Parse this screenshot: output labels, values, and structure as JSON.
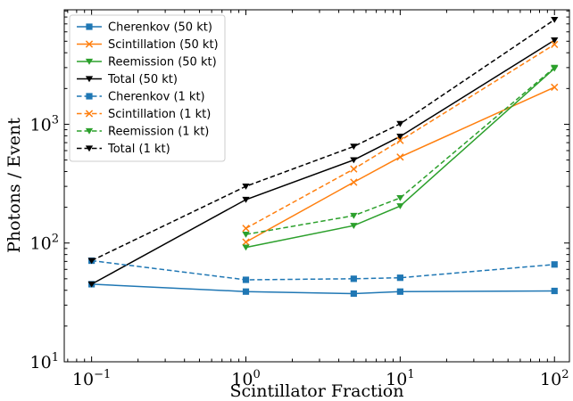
{
  "chart_data": {
    "type": "line",
    "xlabel": "Scintillator Fraction",
    "ylabel": "Photons / Event",
    "x_scale": "log",
    "y_scale": "log",
    "xlim": [
      0.0665,
      125
    ],
    "ylim": [
      10,
      9200
    ],
    "x_ticks": [
      {
        "value": 0.1,
        "base": "10",
        "exp": "−1"
      },
      {
        "value": 1,
        "base": "10",
        "exp": "0"
      },
      {
        "value": 10,
        "base": "10",
        "exp": "1"
      },
      {
        "value": 100,
        "base": "10",
        "exp": "2"
      }
    ],
    "y_ticks": [
      {
        "value": 10,
        "base": "10",
        "exp": "1"
      },
      {
        "value": 100,
        "base": "10",
        "exp": "2"
      },
      {
        "value": 1000,
        "base": "10",
        "exp": "3"
      }
    ],
    "grid": false,
    "legend_position": "top-left",
    "series": [
      {
        "name": "Cherenkov (50 kt)",
        "color": "#1f77b4",
        "marker": "square",
        "dashed": false,
        "x": [
          0.1,
          1,
          5,
          10,
          100
        ],
        "y": [
          45,
          39,
          37.5,
          39,
          39.5
        ]
      },
      {
        "name": "Scintillation (50 kt)",
        "color": "#ff7f0e",
        "marker": "x",
        "dashed": false,
        "x": [
          1,
          5,
          10,
          100
        ],
        "y": [
          102,
          325,
          530,
          2050
        ]
      },
      {
        "name": "Reemission (50 kt)",
        "color": "#2ca02c",
        "marker": "triangle-down",
        "dashed": false,
        "x": [
          1,
          5,
          10,
          100
        ],
        "y": [
          92,
          140,
          205,
          2950
        ]
      },
      {
        "name": "Total (50 kt)",
        "color": "#000000",
        "marker": "triangle-down",
        "dashed": false,
        "x": [
          0.1,
          1,
          5,
          10,
          100
        ],
        "y": [
          45,
          232,
          500,
          790,
          5100
        ]
      },
      {
        "name": "Cherenkov (1 kt)",
        "color": "#1f77b4",
        "marker": "square",
        "dashed": true,
        "x": [
          0.1,
          1,
          5,
          10,
          100
        ],
        "y": [
          71,
          49,
          50,
          51,
          66
        ]
      },
      {
        "name": "Scintillation (1 kt)",
        "color": "#ff7f0e",
        "marker": "x",
        "dashed": true,
        "x": [
          1,
          5,
          10,
          100
        ],
        "y": [
          133,
          420,
          730,
          4700
        ]
      },
      {
        "name": "Reemission (1 kt)",
        "color": "#2ca02c",
        "marker": "triangle-down",
        "dashed": true,
        "x": [
          1,
          5,
          10,
          100
        ],
        "y": [
          118,
          170,
          240,
          3000
        ]
      },
      {
        "name": "Total (1 kt)",
        "color": "#000000",
        "marker": "triangle-down",
        "dashed": true,
        "x": [
          0.1,
          1,
          5,
          10,
          100
        ],
        "y": [
          71,
          300,
          650,
          1010,
          7600
        ]
      }
    ]
  }
}
